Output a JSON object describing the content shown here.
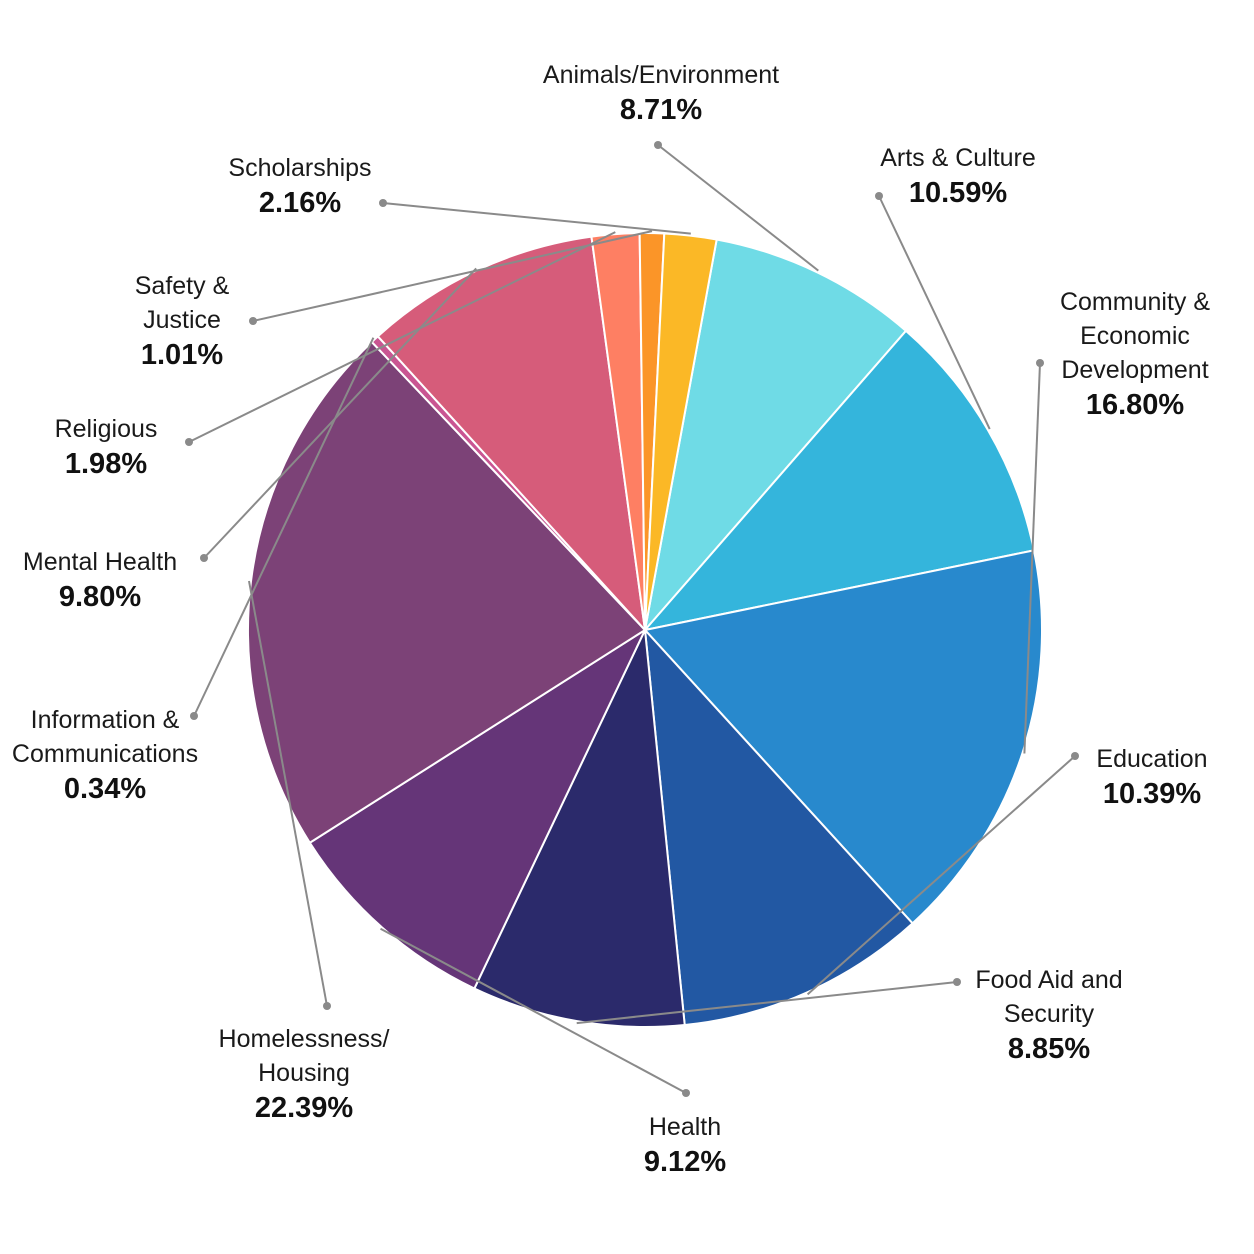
{
  "chart_data": {
    "type": "pie",
    "title": "",
    "unit": "%",
    "slices": [
      {
        "label": "Animals/Environment",
        "lines": [
          "Animals/Environment"
        ],
        "value": 8.71,
        "display": "8.71%",
        "color": "#6fdbe6"
      },
      {
        "label": "Arts & Culture",
        "lines": [
          "Arts & Culture"
        ],
        "value": 10.59,
        "display": "10.59%",
        "color": "#34b5dc"
      },
      {
        "label": "Community & Economic Development",
        "lines": [
          "Community &",
          "Economic",
          "Development"
        ],
        "value": 16.8,
        "display": "16.80%",
        "color": "#2889cd"
      },
      {
        "label": "Education",
        "lines": [
          "Education"
        ],
        "value": 10.39,
        "display": "10.39%",
        "color": "#2258a3"
      },
      {
        "label": "Food Aid and Security",
        "lines": [
          "Food Aid and",
          "Security"
        ],
        "value": 8.85,
        "display": "8.85%",
        "color": "#2b2a6b"
      },
      {
        "label": "Health",
        "lines": [
          "Health"
        ],
        "value": 9.12,
        "display": "9.12%",
        "color": "#653578"
      },
      {
        "label": "Homelessness/ Housing",
        "lines": [
          "Homelessness/",
          "Housing"
        ],
        "value": 22.39,
        "display": "22.39%",
        "color": "#7c4277"
      },
      {
        "label": "Information & Communications",
        "lines": [
          "Information &",
          "Communications"
        ],
        "value": 0.34,
        "display": "0.34%",
        "color": "#c95592"
      },
      {
        "label": "Mental Health",
        "lines": [
          "Mental Health"
        ],
        "value": 9.8,
        "display": "9.80%",
        "color": "#d65c7a"
      },
      {
        "label": "Religious",
        "lines": [
          "Religious"
        ],
        "value": 1.98,
        "display": "1.98%",
        "color": "#fe7f63"
      },
      {
        "label": "Safety & Justice",
        "lines": [
          "Safety &",
          "Justice"
        ],
        "value": 1.01,
        "display": "1.01%",
        "color": "#fb9528"
      },
      {
        "label": "Scholarships",
        "lines": [
          "Scholarships"
        ],
        "value": 2.16,
        "display": "2.16%",
        "color": "#fbb826"
      }
    ]
  }
}
